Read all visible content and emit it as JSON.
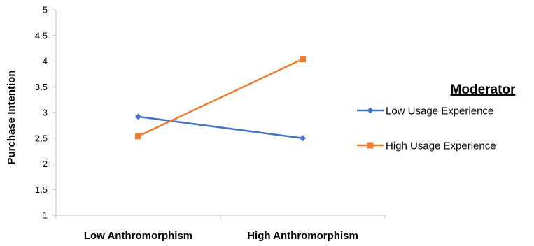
{
  "chart_data": {
    "type": "line",
    "categories": [
      "Low Anthromorphism",
      "High Anthromorphism"
    ],
    "series": [
      {
        "name": "Low Usage Experience",
        "values": [
          2.92,
          2.5
        ],
        "color": "#4472C4",
        "marker": "diamond"
      },
      {
        "name": "High Usage Experience",
        "values": [
          2.54,
          4.04
        ],
        "color": "#ED7D31",
        "marker": "square"
      }
    ],
    "ylabel": "Purchase Intention",
    "xlabel": "",
    "ylim": [
      1,
      5
    ],
    "yticks": [
      "1",
      "1.5",
      "2",
      "2.5",
      "3",
      "3.5",
      "4",
      "4.5",
      "5"
    ],
    "ytick_values": [
      1,
      1.5,
      2,
      2.5,
      3,
      3.5,
      4,
      4.5,
      5
    ],
    "grid": false,
    "legend": {
      "title": "Moderator",
      "placement": "right"
    }
  }
}
